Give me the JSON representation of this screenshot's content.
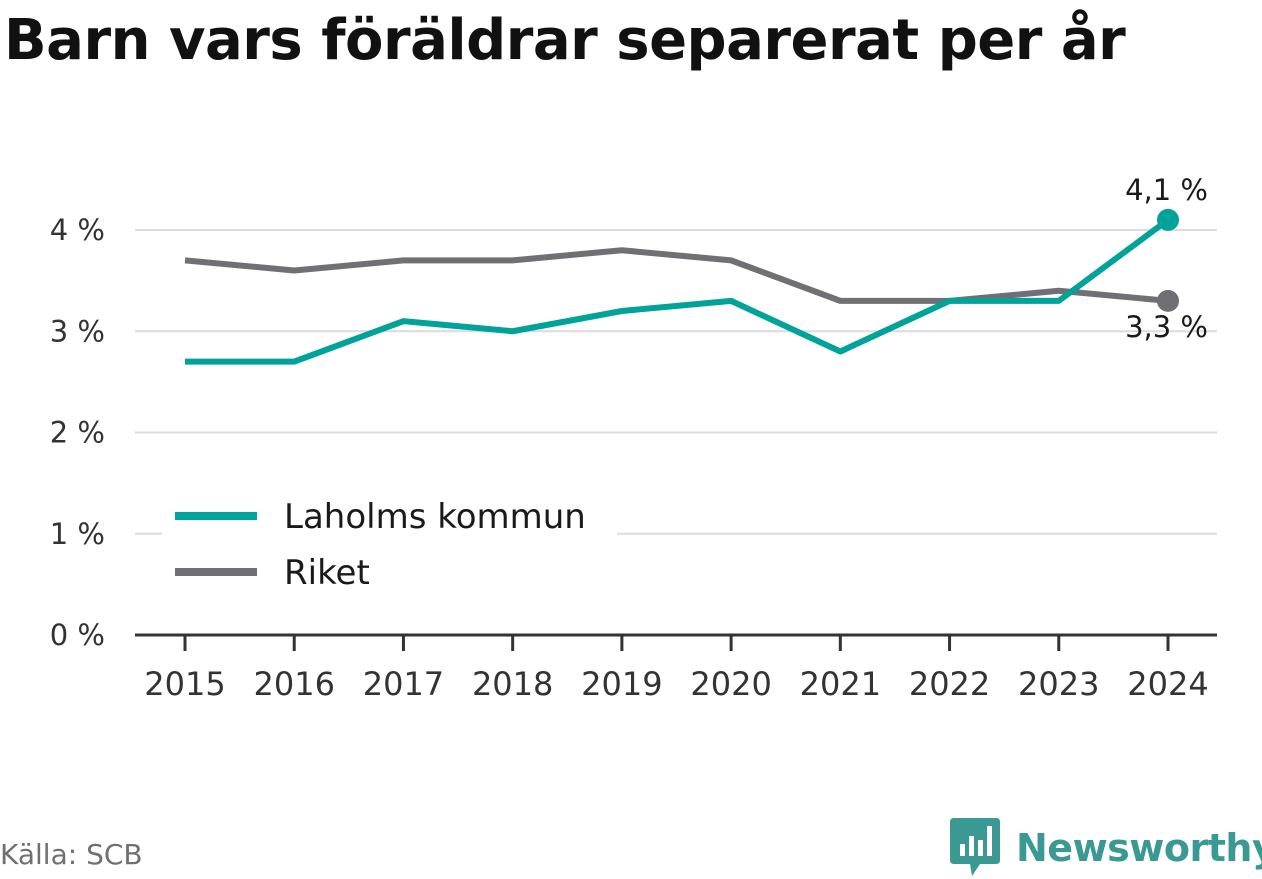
{
  "title": "Barn vars föräldrar separerat per år",
  "source": "Källa: SCB",
  "brand": "Newsworthy",
  "chart_data": {
    "type": "line",
    "x": [
      "2015",
      "2016",
      "2017",
      "2018",
      "2019",
      "2020",
      "2021",
      "2022",
      "2023",
      "2024"
    ],
    "series": [
      {
        "name": "Laholms kommun",
        "color": "#00a39a",
        "values": [
          2.7,
          2.7,
          3.1,
          3.0,
          3.2,
          3.3,
          2.8,
          3.3,
          3.3,
          4.1
        ],
        "end_label": "4,1 %"
      },
      {
        "name": "Riket",
        "color": "#6f6f75",
        "values": [
          3.7,
          3.6,
          3.7,
          3.7,
          3.8,
          3.7,
          3.3,
          3.3,
          3.4,
          3.3
        ],
        "end_label": "3,3 %"
      }
    ],
    "y_ticks": [
      {
        "value": 0,
        "label": "0 %"
      },
      {
        "value": 1,
        "label": "1 %"
      },
      {
        "value": 2,
        "label": "2 %"
      },
      {
        "value": 3,
        "label": "3 %"
      },
      {
        "value": 4,
        "label": "4 %"
      }
    ],
    "ylim": [
      0,
      4
    ],
    "grid": true,
    "legend_position": "lower-left"
  }
}
